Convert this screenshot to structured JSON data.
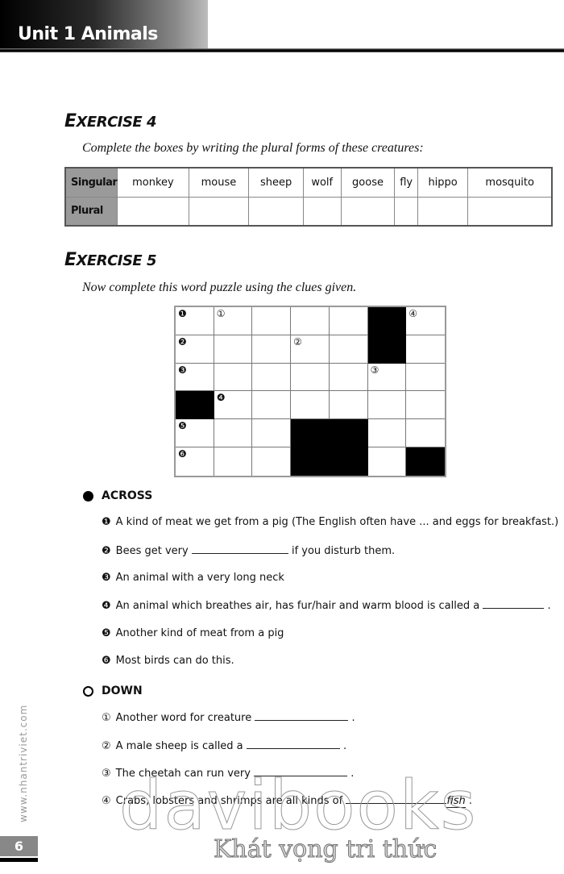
{
  "header": {
    "title": "Unit 1 Animals"
  },
  "exercise4": {
    "title_first": "E",
    "title_rest": "XERCISE 4",
    "instruction": "Complete the boxes by writing the plural forms of these creatures:",
    "row_singular": "Singular",
    "row_plural": "Plural",
    "words": [
      "monkey",
      "mouse",
      "sheep",
      "wolf",
      "goose",
      "fly",
      "hippo",
      "mosquito"
    ]
  },
  "exercise5": {
    "title_first": "E",
    "title_rest": "XERCISE 5",
    "instruction": "Now complete this word puzzle using the clues given.",
    "grid": {
      "rows": 6,
      "cols": 7,
      "black_cells": [
        [
          0,
          5
        ],
        [
          1,
          5
        ],
        [
          3,
          0
        ],
        [
          4,
          3
        ],
        [
          4,
          4
        ],
        [
          5,
          3
        ],
        [
          5,
          4
        ],
        [
          5,
          6
        ]
      ],
      "numbers": [
        {
          "r": 0,
          "c": 0,
          "label": "❶"
        },
        {
          "r": 0,
          "c": 1,
          "label": "①"
        },
        {
          "r": 0,
          "c": 6,
          "label": "④"
        },
        {
          "r": 1,
          "c": 0,
          "label": "❷"
        },
        {
          "r": 1,
          "c": 3,
          "label": "②"
        },
        {
          "r": 2,
          "c": 0,
          "label": "❸"
        },
        {
          "r": 2,
          "c": 5,
          "label": "③"
        },
        {
          "r": 3,
          "c": 1,
          "label": "❹"
        },
        {
          "r": 4,
          "c": 0,
          "label": "❺"
        },
        {
          "r": 5,
          "c": 0,
          "label": "❻"
        }
      ]
    },
    "across_label": "ACROSS",
    "across": [
      {
        "mark": "❶",
        "text": "A kind of meat we get from a pig (The English often have ... and eggs for breakfast.)",
        "after": ""
      },
      {
        "mark": "❷",
        "text": "Bees get very",
        "after": "if you disturb them.",
        "blank": true
      },
      {
        "mark": "❸",
        "text": "An animal with a very long neck",
        "after": ""
      },
      {
        "mark": "❹",
        "text": "An animal which breathes air, has fur/hair and warm blood is called a",
        "after": ".",
        "blank": true
      },
      {
        "mark": "❺",
        "text": "Another kind of meat from a pig",
        "after": ""
      },
      {
        "mark": "❻",
        "text": "Most birds can do this.",
        "after": ""
      }
    ],
    "down_label": "DOWN",
    "down": [
      {
        "mark": "①",
        "text": "Another word for creature",
        "after": "."
      },
      {
        "mark": "②",
        "text": "A male sheep is called a",
        "after": "."
      },
      {
        "mark": "③",
        "text": "The cheetah can run very",
        "after": "."
      },
      {
        "mark": "④",
        "text": "Crabs, lobsters and shrimps are all kinds of",
        "suffix": "fish",
        "after": "."
      }
    ]
  },
  "footer": {
    "side_url": "www.nhantriviet.com",
    "page_number": "6",
    "watermark": "davibooks",
    "watermark_tagline": "Khát vọng tri thức"
  }
}
